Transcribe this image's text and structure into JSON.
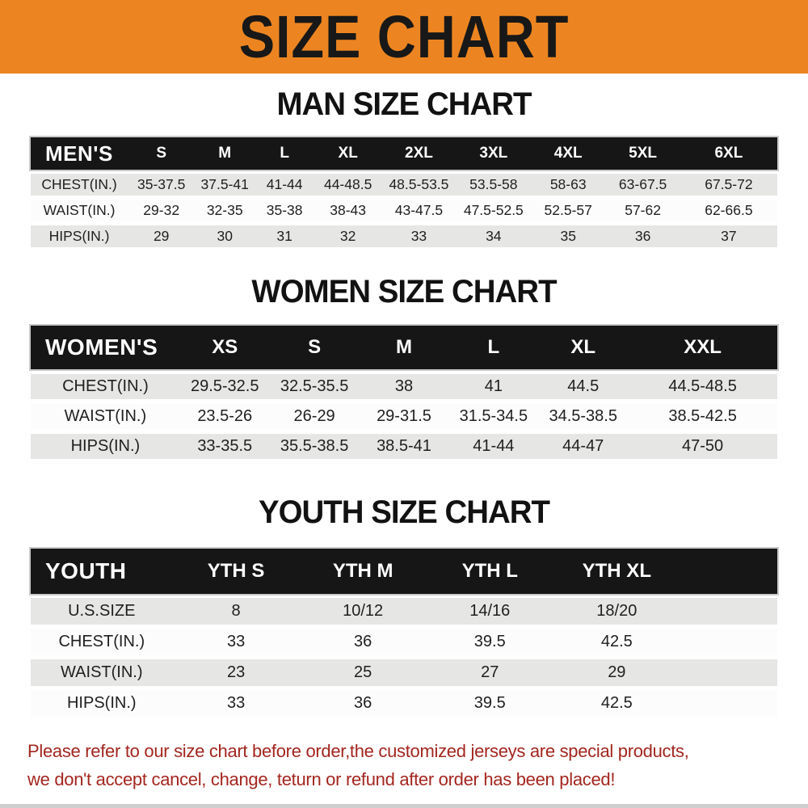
{
  "banner": {
    "title": "SIZE CHART",
    "bg_color": "#ec8521",
    "text_color": "#181818"
  },
  "sections": [
    {
      "heading": "MAN SIZE CHART",
      "table": {
        "corner_label": "MEN'S",
        "columns": [
          "S",
          "M",
          "L",
          "XL",
          "2XL",
          "3XL",
          "4XL",
          "5XL",
          "6XL"
        ],
        "rows": [
          {
            "label": "CHEST(IN.)",
            "values": [
              "35-37.5",
              "37.5-41",
              "41-44",
              "44-48.5",
              "48.5-53.5",
              "53.5-58",
              "58-63",
              "63-67.5",
              "67.5-72"
            ]
          },
          {
            "label": "WAIST(IN.)",
            "values": [
              "29-32",
              "32-35",
              "35-38",
              "38-43",
              "43-47.5",
              "47.5-52.5",
              "52.5-57",
              "57-62",
              "62-66.5"
            ]
          },
          {
            "label": "HIPS(IN.)",
            "values": [
              "29",
              "30",
              "31",
              "32",
              "33",
              "34",
              "35",
              "36",
              "37"
            ]
          }
        ]
      }
    },
    {
      "heading": "WOMEN SIZE CHART",
      "table": {
        "corner_label": "WOMEN'S",
        "columns": [
          "XS",
          "S",
          "M",
          "L",
          "XL",
          "XXL"
        ],
        "rows": [
          {
            "label": "CHEST(IN.)",
            "values": [
              "29.5-32.5",
              "32.5-35.5",
              "38",
              "41",
              "44.5",
              "44.5-48.5"
            ]
          },
          {
            "label": "WAIST(IN.)",
            "values": [
              "23.5-26",
              "26-29",
              "29-31.5",
              "31.5-34.5",
              "34.5-38.5",
              "38.5-42.5"
            ]
          },
          {
            "label": "HIPS(IN.)",
            "values": [
              "33-35.5",
              "35.5-38.5",
              "38.5-41",
              "41-44",
              "44-47",
              "47-50"
            ]
          }
        ]
      }
    },
    {
      "heading": "YOUTH SIZE CHART",
      "table": {
        "corner_label": "YOUTH",
        "columns": [
          "YTH S",
          "YTH M",
          "YTH L",
          "YTH XL"
        ],
        "rows": [
          {
            "label": "U.S.SIZE",
            "values": [
              "8",
              "10/12",
              "14/16",
              "18/20"
            ]
          },
          {
            "label": "CHEST(IN.)",
            "values": [
              "33",
              "36",
              "39.5",
              "42.5"
            ]
          },
          {
            "label": "WAIST(IN.)",
            "values": [
              "23",
              "25",
              "27",
              "29"
            ]
          },
          {
            "label": "HIPS(IN.)",
            "values": [
              "33",
              "36",
              "39.5",
              "42.5"
            ]
          }
        ]
      }
    }
  ],
  "footer": {
    "line1": "Please refer to our size chart before order,the customized jerseys are special products,",
    "line2": "we don't accept cancel, change, teturn or refund after order has been placed!",
    "text_color": "#a3261f"
  },
  "colors": {
    "header_bar": "#161616",
    "row_stripe": "#e6e6e4",
    "row_alt": "#fcfcfc"
  }
}
